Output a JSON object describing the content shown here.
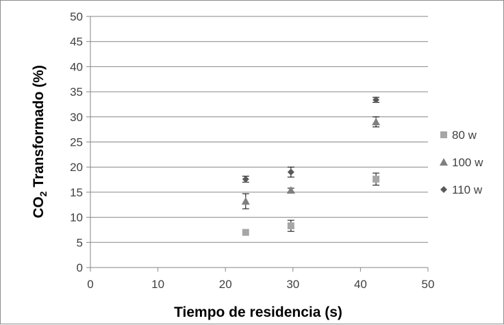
{
  "chart_data": {
    "type": "scatter",
    "xlabel": "Tiempo de residencia (s)",
    "ylabel_main": "CO",
    "ylabel_sub": "2",
    "ylabel_rest": " Transformado  (%)",
    "xlim": [
      0,
      50
    ],
    "ylim": [
      0,
      50
    ],
    "x_ticks": [
      0,
      10,
      20,
      30,
      40,
      50
    ],
    "y_ticks": [
      0,
      5,
      10,
      15,
      20,
      25,
      30,
      35,
      40,
      45,
      50
    ],
    "grid": "horizontal",
    "legend_position": "right",
    "series": [
      {
        "name": "80 w",
        "marker": "square",
        "color": "#a6a6a6",
        "points": [
          {
            "x": 23.0,
            "y": 7.0,
            "err": 0.0
          },
          {
            "x": 29.7,
            "y": 8.3,
            "err": 1.1
          },
          {
            "x": 42.3,
            "y": 17.6,
            "err": 1.2
          }
        ]
      },
      {
        "name": "100 w",
        "marker": "triangle",
        "color": "#7f7f7f",
        "points": [
          {
            "x": 23.0,
            "y": 13.2,
            "err": 1.5
          },
          {
            "x": 29.7,
            "y": 15.4,
            "err": 0.4
          },
          {
            "x": 42.3,
            "y": 29.0,
            "err": 1.0
          }
        ]
      },
      {
        "name": "110 w",
        "marker": "diamond",
        "color": "#595959",
        "points": [
          {
            "x": 23.0,
            "y": 17.6,
            "err": 0.6
          },
          {
            "x": 29.7,
            "y": 19.0,
            "err": 1.0
          },
          {
            "x": 42.3,
            "y": 33.4,
            "err": 0.5
          }
        ]
      }
    ]
  }
}
